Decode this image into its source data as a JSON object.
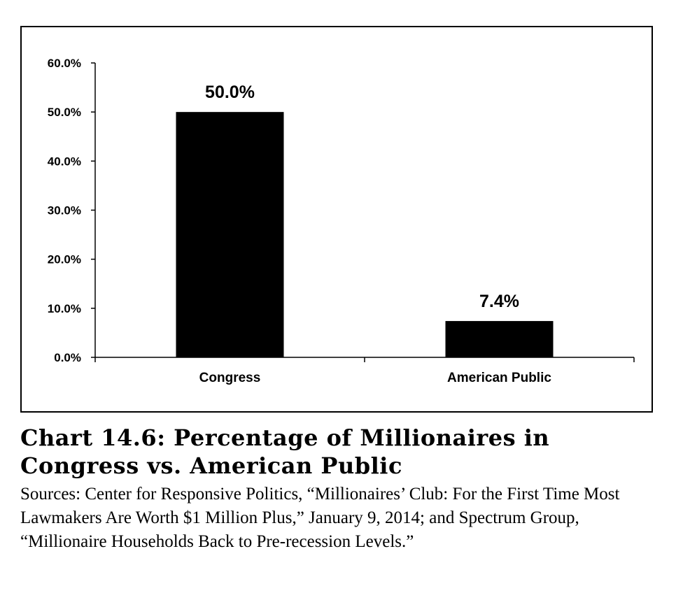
{
  "chart_data": {
    "type": "bar",
    "categories": [
      "Congress",
      "American Public"
    ],
    "values": [
      50.0,
      7.4
    ],
    "data_labels": [
      "50.0%",
      "7.4%"
    ],
    "ylim": [
      0,
      60
    ],
    "yticks": [
      "0.0%",
      "10.0%",
      "20.0%",
      "30.0%",
      "40.0%",
      "50.0%",
      "60.0%"
    ],
    "grid": false,
    "bar_color": "#000000"
  },
  "caption": {
    "title": "Chart 14.6: Percentage of Millionaires in Congress vs. American Public",
    "sources": "Sources: Center for Responsive Politics, “Millionaires’ Club: For the First Time Most Lawmakers Are Worth $1 Million Plus,” January 9, 2014; and Spectrum Group, “Millionaire Households Back to Pre-recession Levels.”"
  }
}
